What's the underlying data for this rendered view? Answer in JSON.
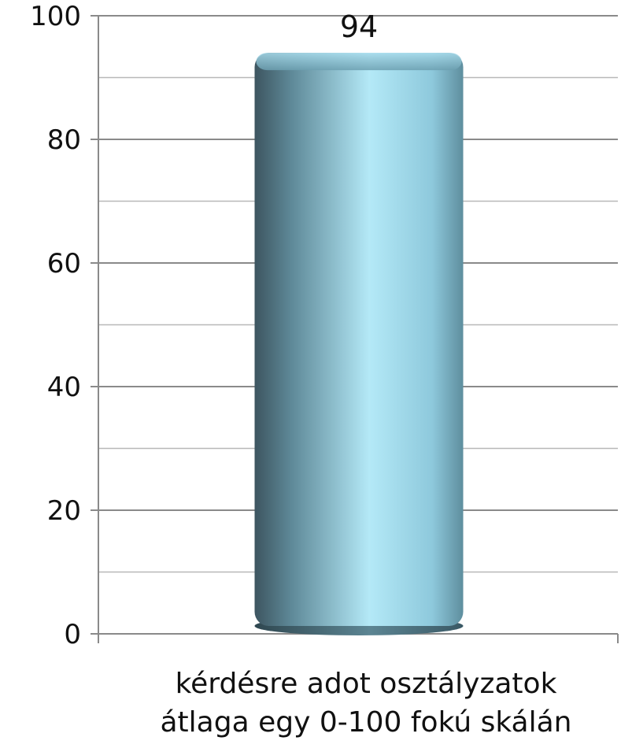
{
  "chart_data": {
    "type": "bar",
    "categories": [
      "kérdésre adot osztályzatok átlaga egy 0-100 fokú skálán"
    ],
    "category_lines": [
      "kérdésre adot osztályzatok",
      "átlaga egy 0-100 fokú skálán"
    ],
    "values": [
      94
    ],
    "data_labels": [
      "94"
    ],
    "ylim": [
      0,
      100
    ],
    "y_ticks": [
      0,
      20,
      40,
      60,
      80,
      100
    ],
    "y_tick_labels": [
      "0",
      "20",
      "40",
      "60",
      "80",
      "100"
    ],
    "minor_gridlines": [
      10,
      30,
      50,
      70,
      90
    ],
    "grid": true,
    "bar_color": "#8ec9dc",
    "bar_shade_color": "#3d5560",
    "bar_highlight_color": "#b4e9f7",
    "axis_color": "#8a8a8a",
    "grid_color": "#8a8a8a",
    "minor_grid_color": "#b8b8b8"
  }
}
